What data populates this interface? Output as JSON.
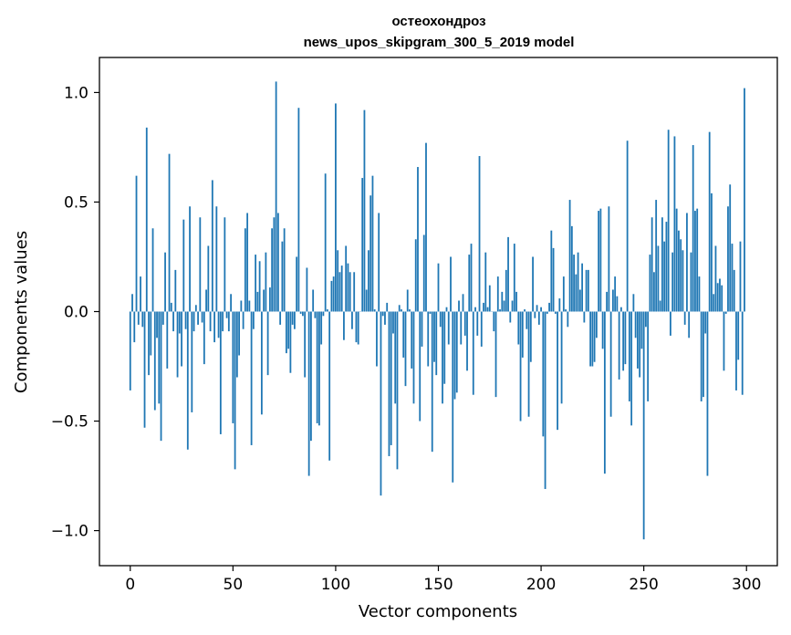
{
  "chart_data": {
    "type": "bar",
    "title": "остеохондроз",
    "subtitle": "news_upos_skipgram_300_5_2019 model",
    "xlabel": "Vector components",
    "ylabel": "Components values",
    "xlim": [
      -15,
      315
    ],
    "ylim": [
      -1.16,
      1.16
    ],
    "xticks": [
      0,
      50,
      100,
      150,
      200,
      250,
      300
    ],
    "xtick_labels": [
      "0",
      "50",
      "100",
      "150",
      "200",
      "250",
      "300"
    ],
    "yticks": [
      -1.0,
      -0.5,
      0.0,
      0.5,
      1.0
    ],
    "ytick_labels": [
      "−1.0",
      "−0.5",
      "0.0",
      "0.5",
      "1.0"
    ],
    "bar_color": "#1f77b4",
    "grid": false,
    "values": [
      -0.36,
      0.08,
      -0.14,
      0.62,
      -0.06,
      0.16,
      -0.07,
      -0.53,
      0.84,
      -0.29,
      -0.2,
      0.38,
      -0.45,
      -0.12,
      -0.42,
      -0.59,
      -0.06,
      0.27,
      -0.26,
      0.72,
      0.04,
      -0.09,
      0.19,
      -0.3,
      -0.1,
      -0.25,
      0.42,
      -0.08,
      -0.63,
      0.48,
      -0.46,
      -0.09,
      0.03,
      -0.06,
      0.43,
      -0.05,
      -0.24,
      0.1,
      0.3,
      -0.09,
      0.6,
      -0.14,
      0.48,
      -0.12,
      -0.56,
      -0.09,
      0.43,
      -0.03,
      -0.09,
      0.08,
      -0.51,
      -0.72,
      -0.3,
      -0.2,
      0.05,
      -0.08,
      0.38,
      0.45,
      0.05,
      -0.61,
      -0.08,
      0.26,
      0.09,
      0.23,
      -0.47,
      0.1,
      0.27,
      -0.29,
      0.11,
      0.38,
      0.43,
      1.05,
      0.45,
      -0.06,
      0.32,
      0.38,
      -0.19,
      -0.17,
      -0.28,
      -0.06,
      -0.08,
      0.25,
      0.93,
      -0.01,
      -0.02,
      -0.3,
      0.2,
      -0.75,
      -0.59,
      0.1,
      -0.03,
      -0.51,
      -0.52,
      -0.15,
      -0.02,
      0.63,
      0.01,
      -0.68,
      0.14,
      0.16,
      0.95,
      0.28,
      0.18,
      0.21,
      -0.13,
      0.3,
      0.22,
      0.18,
      -0.08,
      0.18,
      -0.14,
      -0.15,
      0.0,
      0.61,
      0.92,
      0.1,
      0.28,
      0.53,
      0.62,
      0.01,
      -0.25,
      0.45,
      -0.84,
      -0.02,
      -0.06,
      0.04,
      -0.66,
      -0.61,
      -0.1,
      -0.42,
      -0.72,
      0.03,
      0.01,
      -0.21,
      -0.34,
      0.1,
      0.01,
      -0.26,
      -0.42,
      0.33,
      0.66,
      -0.5,
      -0.16,
      0.35,
      0.77,
      -0.25,
      -0.01,
      -0.64,
      -0.23,
      -0.29,
      0.22,
      -0.07,
      -0.42,
      -0.33,
      0.02,
      -0.15,
      0.25,
      -0.78,
      -0.4,
      -0.37,
      0.05,
      -0.15,
      0.08,
      -0.11,
      -0.27,
      0.26,
      0.31,
      -0.38,
      0.02,
      -0.11,
      0.71,
      -0.16,
      0.04,
      0.27,
      0.02,
      0.12,
      0.0,
      -0.09,
      -0.39,
      0.16,
      0.01,
      0.09,
      0.05,
      0.19,
      0.34,
      -0.05,
      0.05,
      0.31,
      0.09,
      -0.15,
      -0.5,
      -0.21,
      0.01,
      -0.08,
      -0.48,
      -0.23,
      0.25,
      -0.03,
      0.03,
      -0.06,
      0.02,
      -0.57,
      -0.81,
      -0.01,
      0.04,
      0.37,
      0.29,
      -0.01,
      -0.54,
      0.06,
      -0.42,
      0.16,
      0.01,
      -0.07,
      0.51,
      0.39,
      0.26,
      0.17,
      0.27,
      0.1,
      0.22,
      -0.05,
      0.19,
      0.19,
      -0.25,
      -0.25,
      -0.23,
      -0.12,
      0.46,
      0.47,
      -0.17,
      -0.74,
      0.09,
      0.48,
      -0.48,
      0.1,
      0.16,
      0.07,
      -0.31,
      0.02,
      -0.27,
      -0.24,
      0.78,
      -0.41,
      -0.52,
      0.08,
      -0.12,
      -0.26,
      -0.3,
      -0.17,
      -1.04,
      -0.07,
      -0.41,
      0.26,
      0.43,
      0.18,
      0.51,
      0.3,
      0.05,
      0.43,
      0.32,
      0.41,
      0.83,
      -0.11,
      0.27,
      0.8,
      0.47,
      0.37,
      0.33,
      0.28,
      -0.06,
      0.45,
      -0.12,
      0.27,
      0.76,
      0.46,
      0.47,
      0.16,
      -0.41,
      -0.39,
      -0.1,
      -0.75,
      0.82,
      0.54,
      0.08,
      0.3,
      0.13,
      0.15,
      0.12,
      -0.27,
      -0.01,
      0.48,
      0.58,
      0.31,
      0.19,
      -0.36,
      -0.22,
      0.32,
      -0.38,
      1.02
    ]
  }
}
